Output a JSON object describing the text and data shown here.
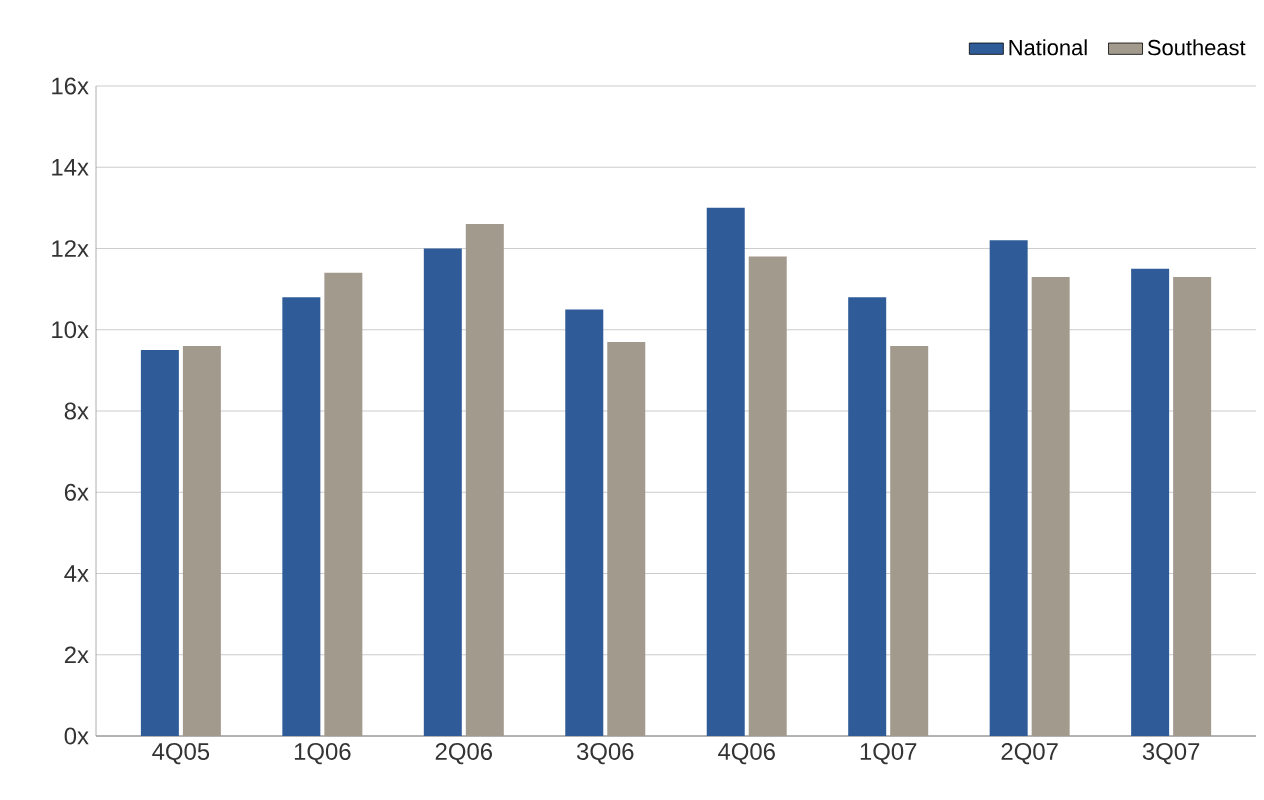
{
  "chart_data": {
    "type": "bar",
    "categories": [
      "4Q05",
      "1Q06",
      "2Q06",
      "3Q06",
      "4Q06",
      "1Q07",
      "2Q07",
      "3Q07"
    ],
    "series": [
      {
        "name": "National",
        "color": "#2f5c98",
        "values": [
          9.5,
          10.8,
          12.0,
          10.5,
          13.0,
          10.8,
          12.2,
          11.5
        ]
      },
      {
        "name": "Southeast",
        "color": "#a39a8e",
        "values": [
          9.6,
          11.4,
          12.6,
          9.7,
          11.8,
          9.6,
          11.3,
          11.3
        ]
      }
    ],
    "ylim": [
      0,
      16
    ],
    "yticks": [
      {
        "value": 0,
        "label": "0x"
      },
      {
        "value": 2,
        "label": "2x"
      },
      {
        "value": 4,
        "label": "4x"
      },
      {
        "value": 6,
        "label": "6x"
      },
      {
        "value": 8,
        "label": "8x"
      },
      {
        "value": 10,
        "label": "10x"
      },
      {
        "value": 12,
        "label": "12x"
      },
      {
        "value": 14,
        "label": "14x"
      },
      {
        "value": 16,
        "label": "16x"
      }
    ],
    "grid": "y",
    "legend": "top right"
  }
}
